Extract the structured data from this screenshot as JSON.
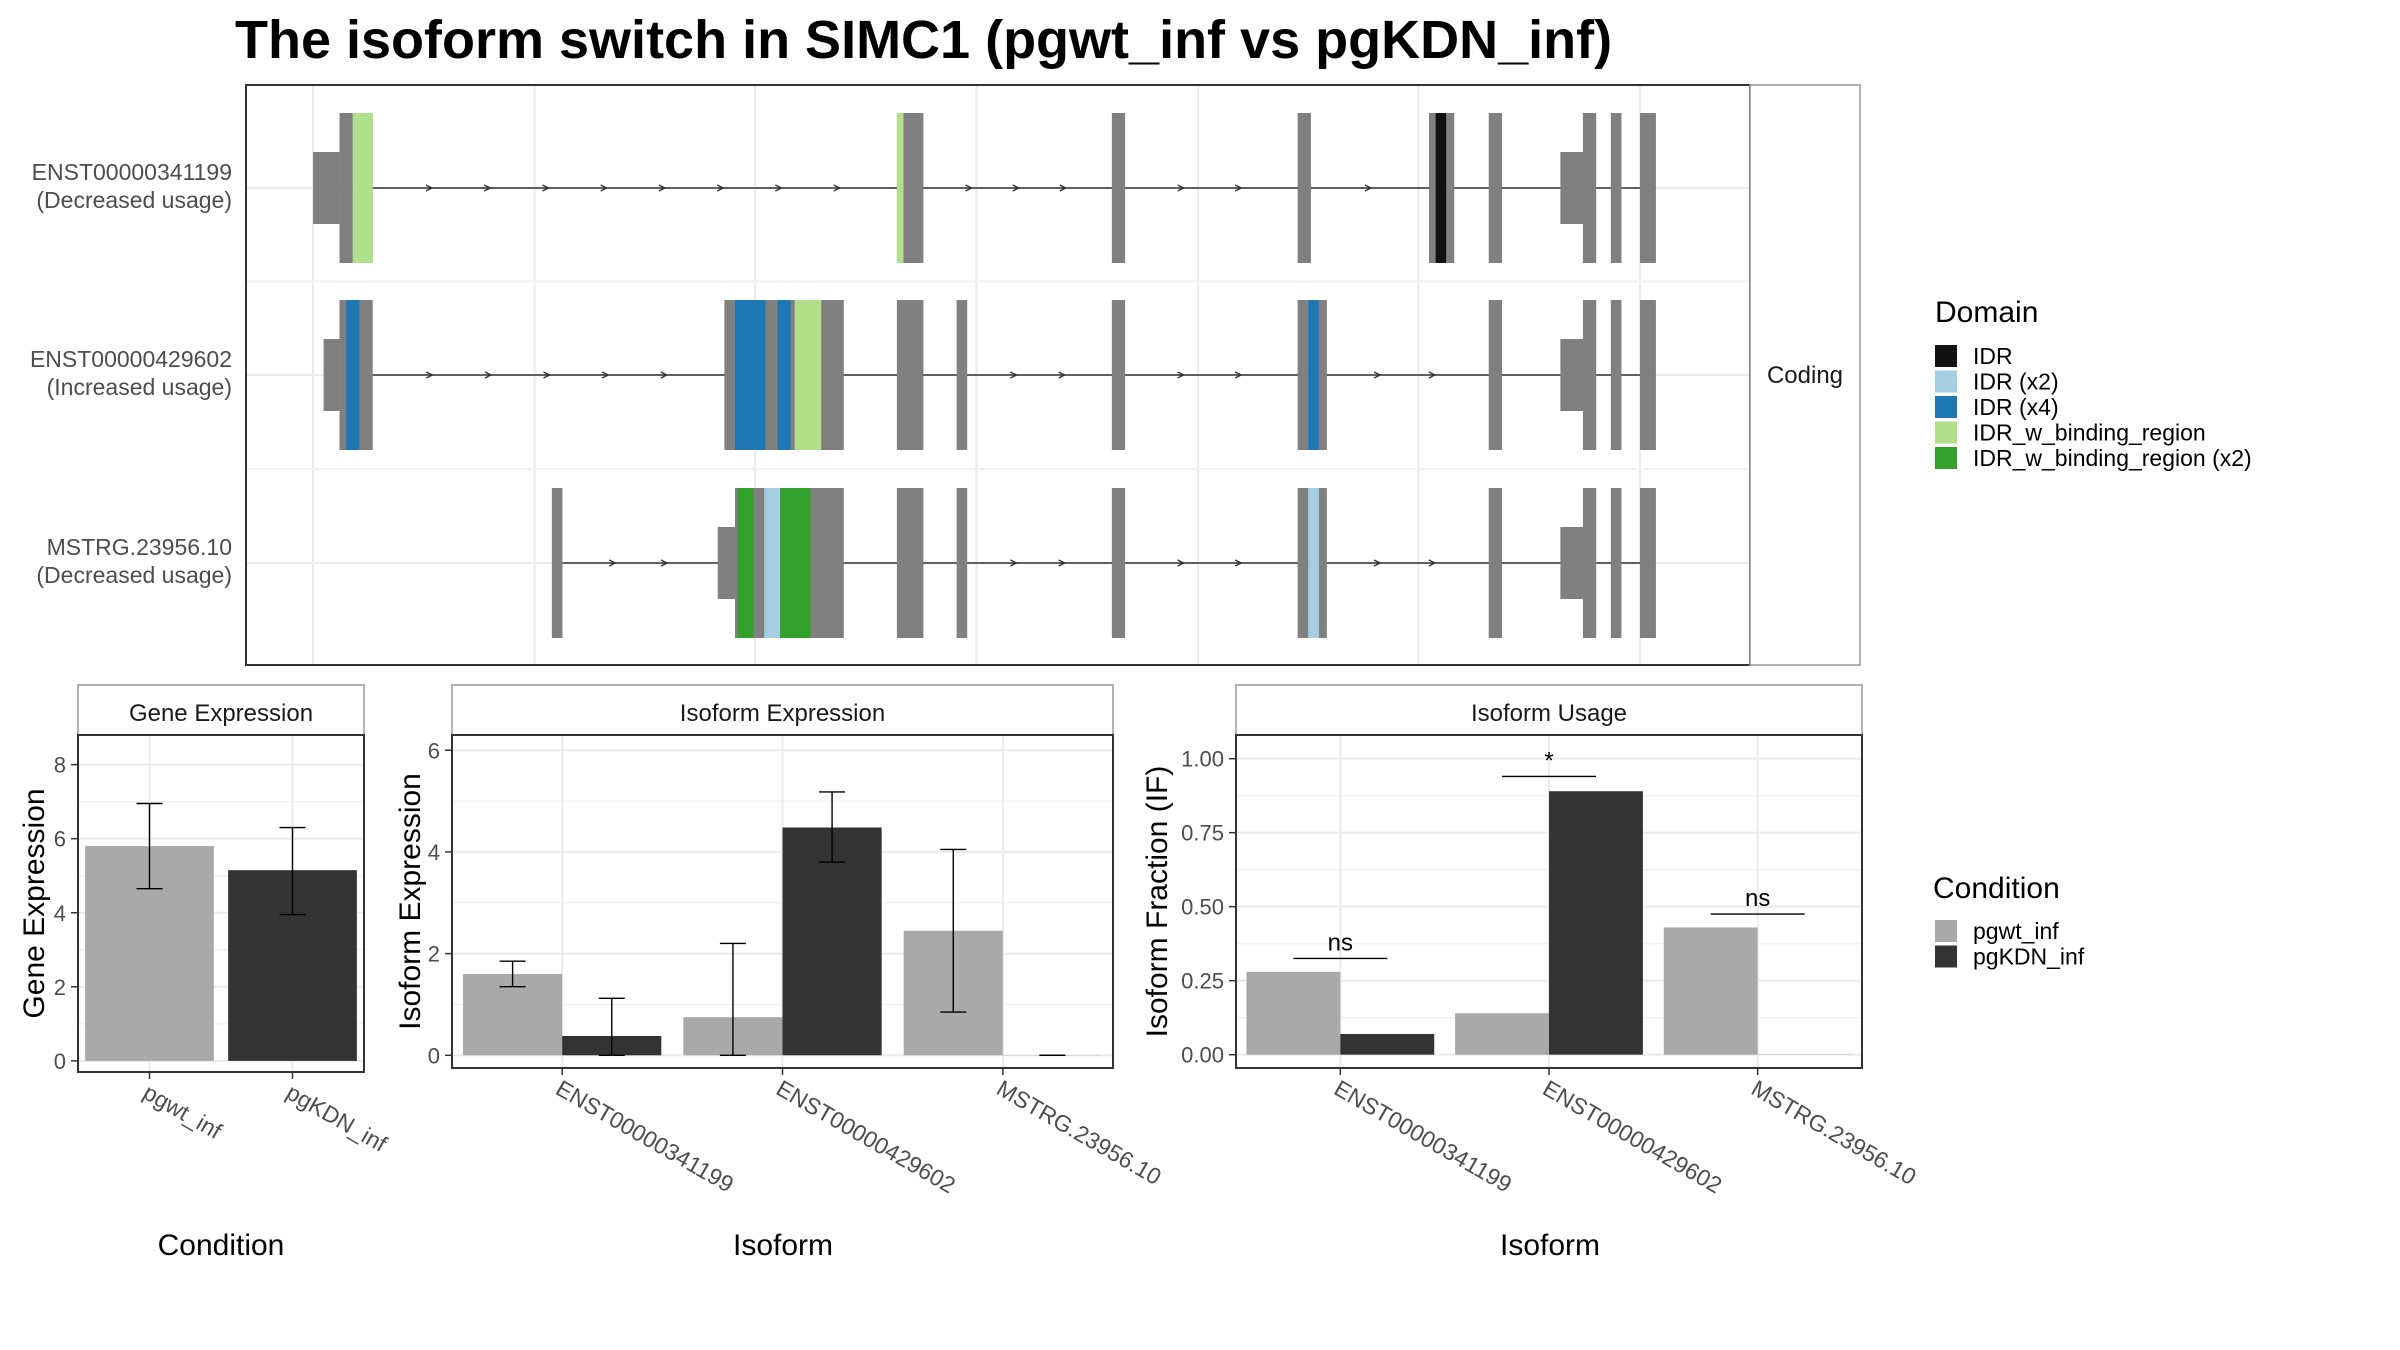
{
  "title": "The isoform switch in SIMC1 (pgwt_inf vs pgKDN_inf)",
  "colors": {
    "exon": "#808080",
    "IDR": "#111111",
    "IDR (x2)": "#a6cee3",
    "IDR (x4)": "#1f78b4",
    "IDR_w_binding_region": "#b2df8a",
    "IDR_w_binding_region (x2)": "#33a02c",
    "pgwt_inf": "#a9a9a9",
    "pgKDN_inf": "#333333"
  },
  "structure": {
    "strip_label": "Coding",
    "isoforms": [
      {
        "label_lines": [
          "ENST00000341199",
          "(Decreased usage)"
        ],
        "utr": [
          [
            0.0,
            0.02
          ],
          [
            0.94,
            0.96
          ]
        ],
        "exons": [
          [
            0.02,
            0.03
          ],
          [
            0.03,
            0.045
          ],
          [
            0.44,
            0.445
          ],
          [
            0.445,
            0.46
          ],
          [
            0.602,
            0.612
          ],
          [
            0.742,
            0.752
          ],
          [
            0.841,
            0.846
          ],
          [
            0.846,
            0.854
          ],
          [
            0.854,
            0.86
          ],
          [
            0.886,
            0.896
          ],
          [
            0.957,
            0.967
          ],
          [
            0.978,
            0.986
          ],
          [
            1.0,
            1.012
          ]
        ],
        "domains": [
          {
            "type": "IDR_w_binding_region",
            "start": 0.03,
            "end": 0.045
          },
          {
            "type": "IDR_w_binding_region",
            "start": 0.44,
            "end": 0.445
          },
          {
            "type": "IDR",
            "start": 0.846,
            "end": 0.854
          }
        ]
      },
      {
        "label_lines": [
          "ENST00000429602",
          "(Increased usage)"
        ],
        "utr": [
          [
            0.008,
            0.02
          ],
          [
            0.94,
            0.96
          ]
        ],
        "exons": [
          [
            0.02,
            0.045
          ],
          [
            0.31,
            0.4
          ],
          [
            0.44,
            0.46
          ],
          [
            0.485,
            0.493
          ],
          [
            0.602,
            0.612
          ],
          [
            0.742,
            0.75
          ],
          [
            0.75,
            0.758
          ],
          [
            0.758,
            0.762
          ],
          [
            0.886,
            0.896
          ],
          [
            0.957,
            0.967
          ],
          [
            0.978,
            0.986
          ],
          [
            1.0,
            1.012
          ]
        ],
        "domains": [
          {
            "type": "IDR (x4)",
            "start": 0.025,
            "end": 0.035
          },
          {
            "type": "IDR (x4)",
            "start": 0.318,
            "end": 0.341
          },
          {
            "type": "IDR (x4)",
            "start": 0.35,
            "end": 0.36
          },
          {
            "type": "IDR_w_binding_region",
            "start": 0.363,
            "end": 0.383
          },
          {
            "type": "IDR (x4)",
            "start": 0.75,
            "end": 0.758
          }
        ]
      },
      {
        "label_lines": [
          "MSTRG.23956.10",
          "(Decreased usage)"
        ],
        "utr": [
          [
            0.305,
            0.318
          ],
          [
            0.94,
            0.96
          ]
        ],
        "exons": [
          [
            0.18,
            0.188
          ],
          [
            0.318,
            0.4
          ],
          [
            0.44,
            0.46
          ],
          [
            0.485,
            0.493
          ],
          [
            0.602,
            0.612
          ],
          [
            0.742,
            0.75
          ],
          [
            0.75,
            0.758
          ],
          [
            0.758,
            0.762
          ],
          [
            0.886,
            0.896
          ],
          [
            0.957,
            0.967
          ],
          [
            0.978,
            0.986
          ],
          [
            1.0,
            1.012
          ]
        ],
        "domains": [
          {
            "type": "IDR_w_binding_region (x2)",
            "start": 0.32,
            "end": 0.332
          },
          {
            "type": "IDR (x2)",
            "start": 0.34,
            "end": 0.352
          },
          {
            "type": "IDR_w_binding_region (x2)",
            "start": 0.352,
            "end": 0.375
          },
          {
            "type": "IDR (x2)",
            "start": 0.75,
            "end": 0.758
          }
        ]
      }
    ]
  },
  "domain_legend": {
    "title": "Domain",
    "items": [
      "IDR",
      "IDR (x2)",
      "IDR (x4)",
      "IDR_w_binding_region",
      "IDR_w_binding_region (x2)"
    ]
  },
  "condition_legend": {
    "title": "Condition",
    "items": [
      "pgwt_inf",
      "pgKDN_inf"
    ]
  },
  "chart_data": [
    {
      "type": "bar",
      "strip": "Gene Expression",
      "categories": [
        "pgwt_inf",
        "pgKDN_inf"
      ],
      "series": [
        {
          "name": "pgwt_inf",
          "values": [
            5.8,
            null
          ]
        },
        {
          "name": "pgKDN_inf",
          "values": [
            null,
            5.15
          ]
        }
      ],
      "errors": [
        [
          4.65,
          6.95
        ],
        [
          3.95,
          6.3
        ]
      ],
      "xlabel": "Condition",
      "ylabel": "Gene Expression",
      "ylim": [
        -0.3,
        8.8
      ],
      "yticks": [
        0,
        2,
        4,
        6,
        8
      ],
      "ytick_labels": [
        "0",
        "2",
        "4",
        "6",
        "8"
      ],
      "grid": true
    },
    {
      "type": "bar",
      "strip": "Isoform Expression",
      "categories": [
        "ENST00000341199",
        "ENST00000429602",
        "MSTRG.23956.10"
      ],
      "series": [
        {
          "name": "pgwt_inf",
          "values": [
            1.6,
            0.75,
            2.45
          ],
          "errors": [
            [
              1.35,
              1.85
            ],
            [
              0.0,
              2.2
            ],
            [
              0.85,
              4.05
            ]
          ]
        },
        {
          "name": "pgKDN_inf",
          "values": [
            0.38,
            4.48,
            0.0
          ],
          "errors": [
            [
              0.0,
              1.12
            ],
            [
              3.8,
              5.18
            ],
            [
              0.0,
              0.0
            ]
          ]
        }
      ],
      "xlabel": "Isoform",
      "ylabel": "Isoform Expression",
      "ylim": [
        -0.25,
        6.3
      ],
      "yticks": [
        0,
        2,
        4,
        6
      ],
      "ytick_labels": [
        "0",
        "2",
        "4",
        "6"
      ],
      "grid": true
    },
    {
      "type": "bar",
      "strip": "Isoform Usage",
      "categories": [
        "ENST00000341199",
        "ENST00000429602",
        "MSTRG.23956.10"
      ],
      "series": [
        {
          "name": "pgwt_inf",
          "values": [
            0.28,
            0.14,
            0.43
          ]
        },
        {
          "name": "pgKDN_inf",
          "values": [
            0.07,
            0.89,
            0.0
          ]
        }
      ],
      "annotations": [
        {
          "category": 0,
          "text": "ns",
          "y": 0.325
        },
        {
          "category": 1,
          "text": "*",
          "y": 0.94
        },
        {
          "category": 2,
          "text": "ns",
          "y": 0.475
        }
      ],
      "xlabel": "Isoform",
      "ylabel": "Isoform Fraction (IF)",
      "ylim": [
        -0.045,
        1.08
      ],
      "yticks": [
        0,
        0.25,
        0.5,
        0.75,
        1.0
      ],
      "ytick_labels": [
        "0.00",
        "0.25",
        "0.50",
        "0.75",
        "1.00"
      ],
      "grid": true
    }
  ]
}
